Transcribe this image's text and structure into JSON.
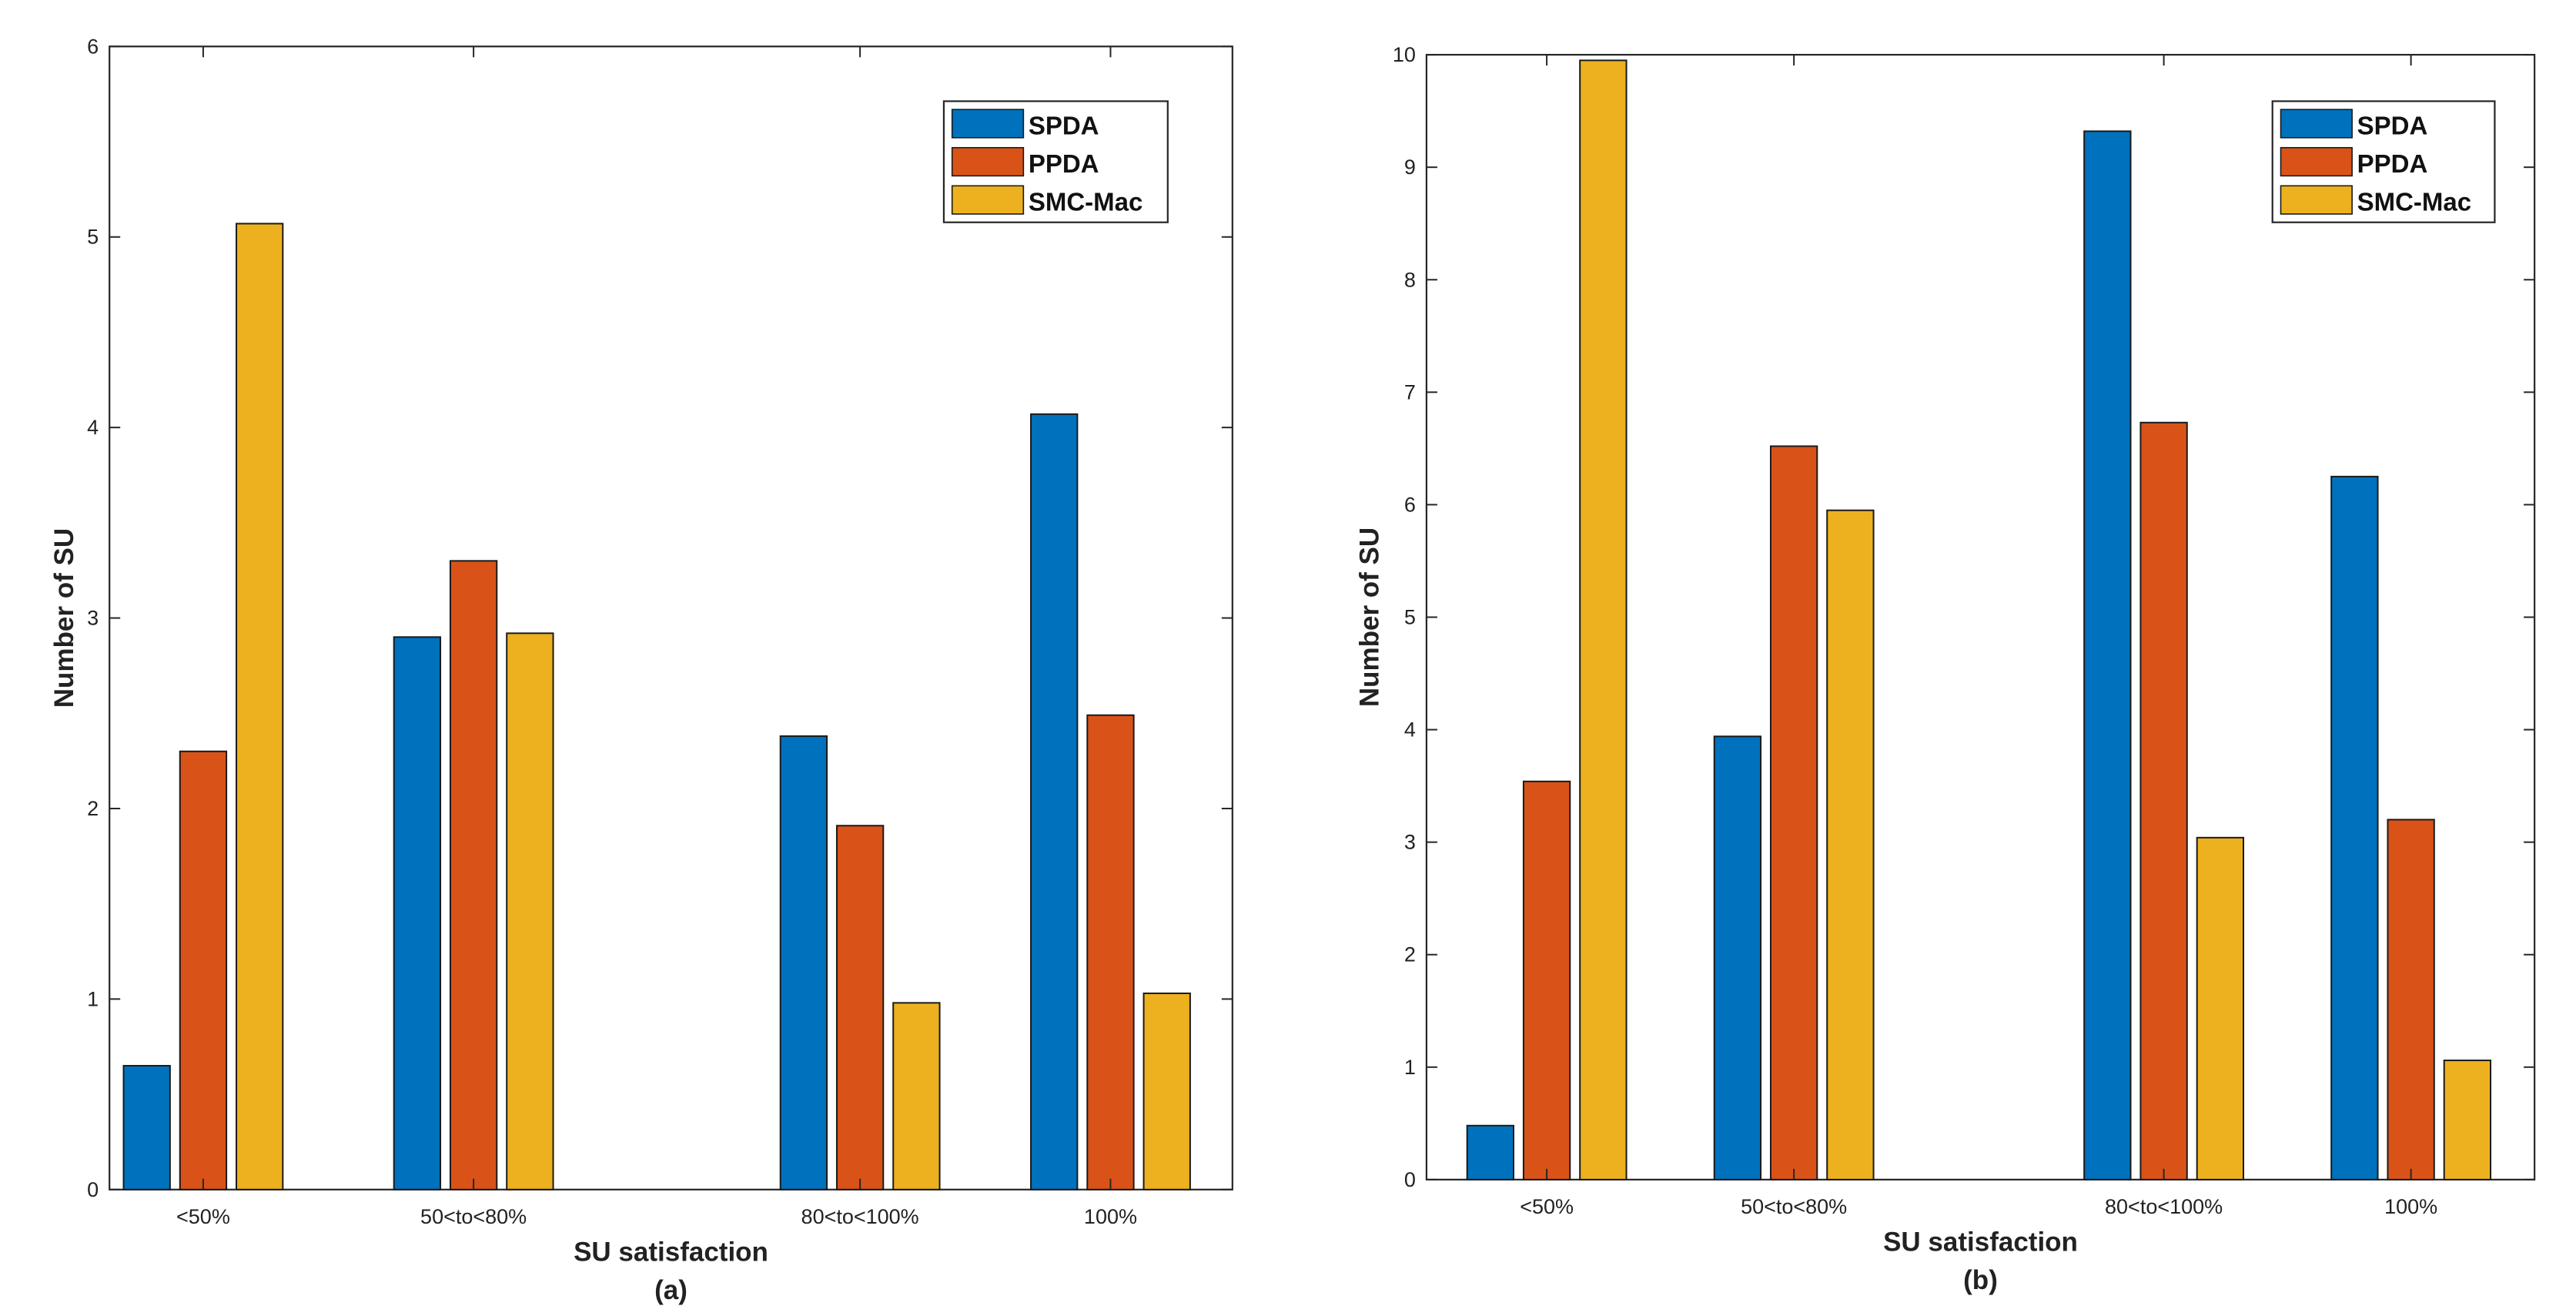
{
  "colors": {
    "SPDA": "#0072BD",
    "PPDA": "#D95319",
    "SMC-Mac": "#EDB120",
    "axis": "#262626"
  },
  "chart_data": [
    {
      "type": "bar",
      "caption": "(a)",
      "xlabel": "SU satisfaction",
      "ylabel": "Number of SU",
      "ylim": [
        0,
        6
      ],
      "yticks": [
        "0",
        "1",
        "2",
        "3",
        "4",
        "5",
        "6"
      ],
      "categories": [
        "<50%",
        "50<to<80%",
        "80<to<100%",
        "100%"
      ],
      "legend": [
        "SPDA",
        "PPDA",
        "SMC-Mac"
      ],
      "legend_position": "top-right",
      "series": [
        {
          "name": "SPDA",
          "values": [
            0.65,
            2.9,
            2.38,
            4.07
          ]
        },
        {
          "name": "PPDA",
          "values": [
            2.3,
            3.3,
            1.91,
            2.49
          ]
        },
        {
          "name": "SMC-Mac",
          "values": [
            5.07,
            2.92,
            0.98,
            1.03
          ]
        }
      ]
    },
    {
      "type": "bar",
      "caption": "(b)",
      "xlabel": "SU satisfaction",
      "ylabel": "Number of SU",
      "ylim": [
        0,
        10
      ],
      "yticks": [
        "0",
        "1",
        "2",
        "3",
        "4",
        "5",
        "6",
        "7",
        "8",
        "9",
        "10"
      ],
      "categories": [
        "<50%",
        "50<to<80%",
        "80<to<100%",
        "100%"
      ],
      "legend": [
        "SPDA",
        "PPDA",
        "SMC-Mac"
      ],
      "legend_position": "top-right",
      "series": [
        {
          "name": "SPDA",
          "values": [
            0.48,
            3.94,
            9.32,
            6.25
          ]
        },
        {
          "name": "PPDA",
          "values": [
            3.54,
            6.52,
            6.73,
            3.2
          ]
        },
        {
          "name": "SMC-Mac",
          "values": [
            9.95,
            5.95,
            3.04,
            1.06
          ]
        }
      ]
    }
  ]
}
